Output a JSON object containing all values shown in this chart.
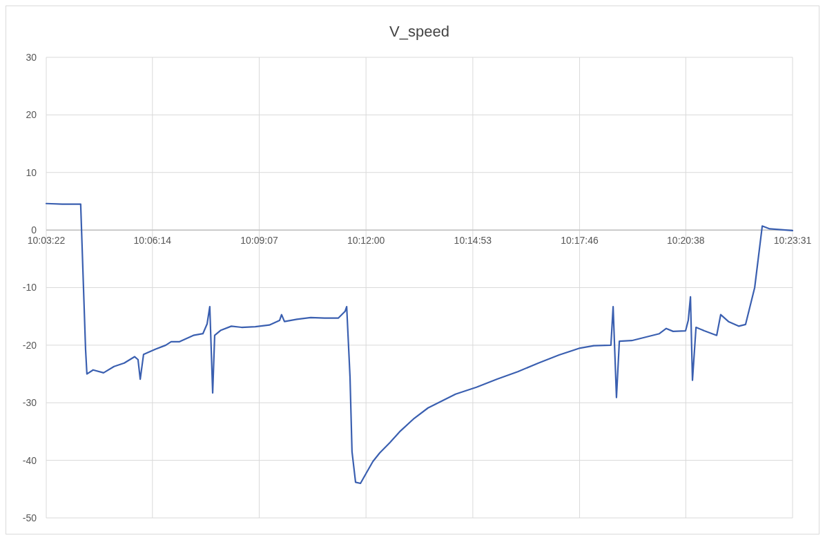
{
  "chart_data": {
    "type": "line",
    "title": "V_speed",
    "x": [
      10.05611,
      10.0633,
      10.0716,
      10.0738,
      10.0744,
      10.0772,
      10.0819,
      10.0866,
      10.0912,
      10.0959,
      10.0974,
      10.0984,
      10.0999,
      10.1052,
      10.1099,
      10.1123,
      10.1161,
      10.1223,
      10.1266,
      10.1285,
      10.1297,
      10.131,
      10.1319,
      10.1347,
      10.1394,
      10.144,
      10.1502,
      10.1565,
      10.1611,
      10.162,
      10.1633,
      10.1689,
      10.1751,
      10.1813,
      10.1875,
      10.1906,
      10.1913,
      10.1928,
      10.1937,
      10.1953,
      10.1975,
      10.2,
      10.2031,
      10.2062,
      10.2108,
      10.2155,
      10.2217,
      10.2279,
      10.2341,
      10.2403,
      10.2497,
      10.259,
      10.2683,
      10.2776,
      10.2869,
      10.2963,
      10.3025,
      10.3102,
      10.3112,
      10.3127,
      10.314,
      10.3196,
      10.3258,
      10.332,
      10.3351,
      10.3382,
      10.3438,
      10.345,
      10.346,
      10.3469,
      10.3485,
      10.3522,
      10.3578,
      10.3596,
      10.3631,
      10.3677,
      10.3708,
      10.3749,
      10.3783,
      10.3817,
      10.39194
    ],
    "series": [
      {
        "color": "#3a5fb0",
        "values": [
          4.6,
          4.5,
          4.5,
          -20.7,
          -25,
          -24.3,
          -24.8,
          -23.7,
          -23.1,
          -22,
          -22.5,
          -25.9,
          -21.6,
          -20.7,
          -20,
          -19.4,
          -19.4,
          -18.3,
          -18,
          -16.3,
          -13.3,
          -28.3,
          -18.3,
          -17.4,
          -16.7,
          -16.9,
          -16.8,
          -16.5,
          -15.7,
          -14.7,
          -15.9,
          -15.5,
          -15.2,
          -15.3,
          -15.3,
          -14.1,
          -13.3,
          -25.5,
          -38.5,
          -43.8,
          -44,
          -42.3,
          -40.2,
          -38.7,
          -36.9,
          -34.9,
          -32.7,
          -30.9,
          -29.7,
          -28.5,
          -27.3,
          -25.9,
          -24.6,
          -23.1,
          -21.7,
          -20.5,
          -20.1,
          -20,
          -13.3,
          -29.1,
          -19.3,
          -19.2,
          -18.6,
          -18,
          -17.1,
          -17.6,
          -17.5,
          -15.7,
          -11.6,
          -26.1,
          -16.9,
          -17.5,
          -18.3,
          -14.7,
          -15.9,
          -16.7,
          -16.4,
          -10,
          0.7,
          0.2,
          -0.1
        ]
      }
    ],
    "xlim": [
      10.05611,
      10.39194
    ],
    "xticks": [
      {
        "value": 10.05611,
        "label": "10:03:22"
      },
      {
        "value": 10.10389,
        "label": "10:06:14"
      },
      {
        "value": 10.15194,
        "label": "10:09:07"
      },
      {
        "value": 10.2,
        "label": "10:12:00"
      },
      {
        "value": 10.24806,
        "label": "10:14:53"
      },
      {
        "value": 10.29611,
        "label": "10:17:46"
      },
      {
        "value": 10.34389,
        "label": "10:20:38"
      },
      {
        "value": 10.39194,
        "label": "10:23:31"
      }
    ],
    "ylim": [
      -50,
      30
    ],
    "yticks": [
      -50,
      -40,
      -30,
      -20,
      -10,
      0,
      10,
      20,
      30
    ],
    "grid": true,
    "marker": "none",
    "line_style": "solid"
  }
}
